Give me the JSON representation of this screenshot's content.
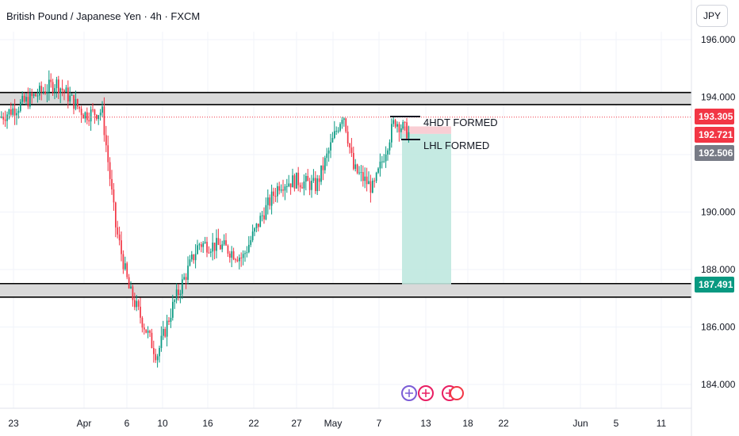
{
  "header": {
    "title": "British Pound / Japanese Yen · 4h · FXCM",
    "currency": "JPY"
  },
  "colors": {
    "up": "#089981",
    "down": "#f23645",
    "grid": "#f0f3fa",
    "zone_band": "#d9d9d9",
    "zone_line": "#000000",
    "target_fill": "#bfe8df",
    "stop_fill": "#f8c9cf",
    "current_price_tag": "#f23645",
    "previous_close_tag": "#787b86",
    "target_tag": "#089981"
  },
  "chart_data": {
    "type": "candlestick",
    "timeframe": "4h",
    "ylim": [
      183.5,
      197.0
    ],
    "y_ticks": [
      184.0,
      186.0,
      188.0,
      190.0,
      192.0,
      194.0,
      196.0
    ],
    "y_tick_labels": [
      "184.000",
      "186.000",
      "188.000",
      "190.000",
      "",
      "194.000",
      "196.000"
    ],
    "x_labels": [
      "23",
      "Apr",
      "6",
      "10",
      "16",
      "22",
      "27",
      "May",
      "7",
      "13",
      "18",
      "22",
      "Jun",
      "5",
      "11"
    ],
    "price_tags": [
      {
        "label": "193.305",
        "value": 193.305,
        "role": "high"
      },
      {
        "label": "192.721",
        "value": 192.721,
        "role": "current"
      },
      {
        "label": "192.506",
        "value": 192.506,
        "role": "previous"
      },
      {
        "label": "187.491",
        "value": 187.491,
        "role": "target"
      }
    ],
    "zones": [
      {
        "name": "resistance",
        "low": 193.85,
        "high": 194.05
      },
      {
        "name": "support",
        "low": 187.15,
        "high": 187.4
      }
    ],
    "annotations": [
      "4HDT FORMED",
      "LHL FORMED"
    ],
    "position": {
      "entry": 192.72,
      "stop": 192.98,
      "target": 187.49
    },
    "key_points": [
      {
        "x": "Mar 20",
        "close": 193.3
      },
      {
        "x": "Mar 23",
        "close": 193.6
      },
      {
        "x": "Mar 27",
        "close": 194.5
      },
      {
        "x": "Mar 31",
        "close": 193.4
      },
      {
        "x": "Apr 2",
        "close": 193.5
      },
      {
        "x": "Apr 5",
        "close": 189.5
      },
      {
        "x": "Apr 7",
        "close": 187.3
      },
      {
        "x": "Apr 9",
        "close": 185.0
      },
      {
        "x": "Apr 11",
        "close": 186.8
      },
      {
        "x": "Apr 14",
        "close": 188.9
      },
      {
        "x": "Apr 17",
        "close": 188.8
      },
      {
        "x": "Apr 21",
        "close": 188.4
      },
      {
        "x": "Apr 23",
        "close": 189.9
      },
      {
        "x": "Apr 25",
        "close": 191.0
      },
      {
        "x": "Apr 28",
        "close": 191.1
      },
      {
        "x": "Apr 30",
        "close": 190.9
      },
      {
        "x": "May 2",
        "close": 193.5
      },
      {
        "x": "May 5",
        "close": 191.5
      },
      {
        "x": "May 7",
        "close": 190.8
      },
      {
        "x": "May 9",
        "close": 193.2
      },
      {
        "x": "May 10",
        "close": 192.7
      }
    ]
  }
}
